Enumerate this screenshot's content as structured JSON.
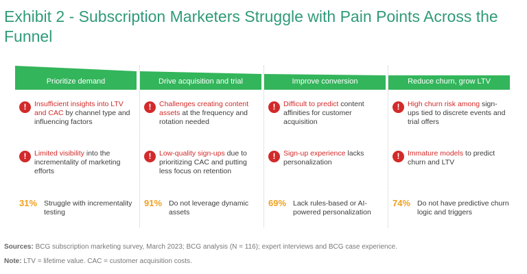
{
  "title": "Exhibit 2 - Subscription Marketers Struggle with Pain Points Across the Funnel",
  "alert_icon": "!",
  "colors": {
    "title": "#2f9a78",
    "banner": "#33b55b",
    "alert": "#d22a2a",
    "stat": "#f0a020"
  },
  "columns": [
    {
      "heading": "Prioritize demand",
      "items": [
        {
          "highlight": "Insufficient insights into LTV and CAC",
          "rest": " by channel type and influencing factors"
        },
        {
          "highlight": "Limited visibility",
          "rest": " into the incrementality of marketing efforts"
        }
      ],
      "stat": {
        "pct": "31%",
        "text": "Struggle with incrementality testing"
      }
    },
    {
      "heading": "Drive acquisition and trial",
      "items": [
        {
          "highlight": "Challenges creating content assets",
          "rest": " at the frequency and rotation needed"
        },
        {
          "highlight": "Low-quality sign-ups",
          "rest": " due to prioritizing CAC and putting less focus on retention"
        }
      ],
      "stat": {
        "pct": "91%",
        "text": "Do not leverage dynamic assets"
      }
    },
    {
      "heading": "Improve conversion",
      "items": [
        {
          "highlight": "Difficult to predict",
          "rest": " content affinities for customer acquisition"
        },
        {
          "highlight": "Sign-up experience",
          "rest": " lacks personalization"
        }
      ],
      "stat": {
        "pct": "69%",
        "text": "Lack rules-based or AI-powered personalization"
      }
    },
    {
      "heading": "Reduce churn, grow LTV",
      "items": [
        {
          "highlight": "High churn risk among",
          "rest": " sign-ups tied to discrete events and trial offers"
        },
        {
          "highlight": "Immature models",
          "rest": " to predict churn and LTV"
        }
      ],
      "stat": {
        "pct": "74%",
        "text": "Do not have predictive churn logic and triggers"
      }
    }
  ],
  "sources": {
    "label": "Sources:",
    "text": " BCG subscription marketing survey, March 2023; BCG analysis (N = 116); expert interviews and BCG case experience."
  },
  "note": {
    "label": "Note:",
    "text": " LTV = lifetime value. CAC = customer acquisition costs."
  }
}
